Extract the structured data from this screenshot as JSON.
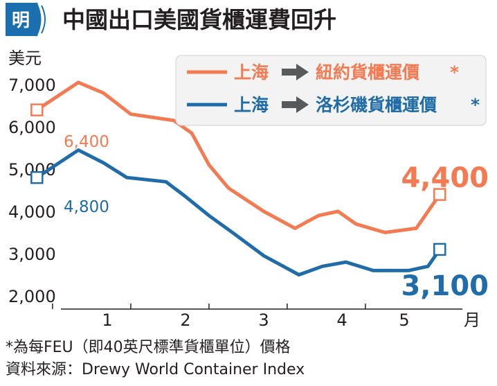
{
  "logo": {
    "glyph": "明"
  },
  "title": "中國出口美國貨櫃運費回升",
  "colors": {
    "ny": "#f47a52",
    "la": "#1f6ca8",
    "arrow": "#58595b",
    "legend_bg": "#f3f3f3",
    "logo": "#1b6fae",
    "text": "#231f20"
  },
  "chart_data": {
    "type": "line",
    "ylabel": "美元",
    "xlabel": "月",
    "ylim": [
      2000,
      7000
    ],
    "y_ticks": [
      "7,000",
      "6,000",
      "5,000",
      "4,000",
      "3,000",
      "2,000"
    ],
    "x_ticks": [
      "1",
      "2",
      "3",
      "4",
      "5"
    ],
    "grid": false,
    "legend_position": "top-right",
    "series": [
      {
        "key": "ny",
        "legend_from": "上海",
        "legend_to": "紐約貨櫃運價",
        "legend_star": "*",
        "start_label": "6,400",
        "end_label": "4,400",
        "x": [
          0.1,
          0.63,
          0.95,
          1.3,
          1.85,
          2.08,
          2.3,
          2.55,
          3.0,
          3.4,
          3.7,
          3.95,
          4.18,
          4.55,
          4.95,
          5.25
        ],
        "values": [
          6400,
          7050,
          6800,
          6300,
          6150,
          5850,
          5100,
          4550,
          4000,
          3600,
          3900,
          4000,
          3700,
          3500,
          3600,
          4400
        ]
      },
      {
        "key": "la",
        "legend_from": "上海",
        "legend_to": "洛杉磯貨櫃運價",
        "legend_star": "*",
        "start_label": "4,800",
        "end_label": "3,100",
        "x": [
          0.1,
          0.63,
          0.95,
          1.25,
          1.75,
          2.0,
          2.3,
          2.6,
          3.0,
          3.45,
          3.75,
          4.05,
          4.4,
          4.85,
          5.1,
          5.25
        ],
        "values": [
          4800,
          5450,
          5150,
          4800,
          4700,
          4350,
          3900,
          3500,
          2950,
          2500,
          2700,
          2800,
          2600,
          2600,
          2700,
          3100
        ]
      }
    ]
  },
  "footnote": "*為每FEU（即40英尺標準貨櫃單位）價格",
  "source": "資料來源：Drewy World Container Index"
}
